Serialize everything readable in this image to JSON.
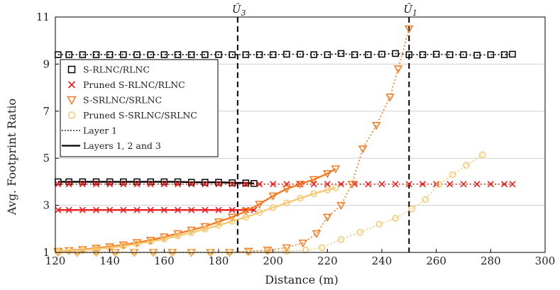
{
  "chart_data": {
    "type": "line",
    "title": "",
    "xlabel": "Distance (m)",
    "ylabel": "Avg. Footprint Ratio",
    "xlim": [
      120,
      300
    ],
    "ylim": [
      1,
      11
    ],
    "xticks": [
      120,
      140,
      160,
      180,
      200,
      220,
      240,
      260,
      280,
      300
    ],
    "yticks": [
      1,
      3,
      5,
      7,
      9,
      11
    ],
    "grid": "horizontal",
    "legend_position": "left",
    "colors": {
      "black": "#000000",
      "red": "#ee1c1c",
      "orange": "#f47a20",
      "yellow": "#f6c873",
      "vline": "#000000"
    },
    "vlines": [
      {
        "x": 187,
        "label": "Û3",
        "label_main": "Û",
        "label_sub": "3"
      },
      {
        "x": 250,
        "label": "Û1",
        "label_main": "Û",
        "label_sub": "1"
      }
    ],
    "legend": [
      {
        "label": "S-RLNC/RLNC",
        "marker": "square",
        "color": "#000000"
      },
      {
        "label": "Pruned S-RLNC/RLNC",
        "marker": "x",
        "color": "#ee1c1c"
      },
      {
        "label": "S-SRLNC/SRLNC",
        "marker": "triangle-down",
        "color": "#f47a20"
      },
      {
        "label": "Pruned S-SRLNC/SRLNC",
        "marker": "circle",
        "color": "#f6c873"
      },
      {
        "label": "Layer 1",
        "line": "dotted",
        "color": "#000000"
      },
      {
        "label": "Layers 1, 2 and 3",
        "line": "solid",
        "color": "#000000"
      }
    ],
    "series": [
      {
        "name": "S-RLNC/RLNC (Layer 1)",
        "color": "#000000",
        "marker": "square",
        "line": "dotted",
        "x": [
          121,
          125,
          130,
          135,
          140,
          145,
          150,
          155,
          160,
          165,
          170,
          175,
          180,
          185,
          190,
          195,
          200,
          205,
          210,
          215,
          220,
          225,
          230,
          235,
          240,
          245,
          250,
          255,
          260,
          265,
          270,
          275,
          280,
          285,
          288
        ],
        "y": [
          9.4,
          9.4,
          9.4,
          9.4,
          9.4,
          9.4,
          9.4,
          9.4,
          9.4,
          9.4,
          9.4,
          9.4,
          9.4,
          9.4,
          9.4,
          9.4,
          9.4,
          9.42,
          9.42,
          9.4,
          9.4,
          9.45,
          9.4,
          9.4,
          9.42,
          9.45,
          9.4,
          9.4,
          9.42,
          9.4,
          9.4,
          9.38,
          9.4,
          9.4,
          9.42
        ]
      },
      {
        "name": "S-RLNC/RLNC (Layers 1, 2 and 3)",
        "color": "#000000",
        "marker": "square",
        "line": "solid",
        "x": [
          121,
          125,
          130,
          135,
          140,
          145,
          150,
          155,
          160,
          165,
          170,
          175,
          180,
          185,
          190,
          193
        ],
        "y": [
          4.0,
          4.0,
          4.0,
          4.0,
          4.0,
          4.0,
          4.0,
          4.0,
          4.0,
          4.0,
          3.98,
          3.98,
          3.98,
          3.96,
          3.95,
          3.93
        ]
      },
      {
        "name": "Pruned S-RLNC/RLNC (Layer 1)",
        "color": "#ee1c1c",
        "marker": "x",
        "line": "dotted",
        "x": [
          121,
          125,
          130,
          135,
          140,
          145,
          150,
          155,
          160,
          165,
          170,
          175,
          180,
          185,
          190,
          195,
          200,
          205,
          210,
          215,
          220,
          225,
          230,
          235,
          240,
          245,
          250,
          255,
          260,
          265,
          270,
          275,
          280,
          285,
          288
        ],
        "y": [
          3.9,
          3.9,
          3.9,
          3.9,
          3.9,
          3.9,
          3.9,
          3.9,
          3.9,
          3.9,
          3.9,
          3.9,
          3.9,
          3.9,
          3.9,
          3.9,
          3.9,
          3.9,
          3.9,
          3.9,
          3.9,
          3.9,
          3.9,
          3.9,
          3.9,
          3.9,
          3.9,
          3.9,
          3.9,
          3.9,
          3.9,
          3.9,
          3.9,
          3.9,
          3.9
        ]
      },
      {
        "name": "Pruned S-RLNC/RLNC (Layers 1, 2 and 3)",
        "color": "#ee1c1c",
        "marker": "x",
        "line": "solid",
        "x": [
          121,
          125,
          130,
          135,
          140,
          145,
          150,
          155,
          160,
          165,
          170,
          175,
          180,
          185,
          190,
          193
        ],
        "y": [
          2.8,
          2.8,
          2.8,
          2.8,
          2.8,
          2.8,
          2.8,
          2.8,
          2.8,
          2.8,
          2.8,
          2.8,
          2.8,
          2.8,
          2.8,
          2.8
        ]
      },
      {
        "name": "S-SRLNC/SRLNC (Layer 1)",
        "color": "#f47a20",
        "marker": "triangle-down",
        "line": "dotted",
        "x": [
          121,
          128,
          135,
          142,
          149,
          156,
          163,
          170,
          177,
          184,
          191,
          198,
          205,
          211,
          216,
          220,
          225,
          229,
          233,
          238,
          243,
          246,
          250
        ],
        "y": [
          1.0,
          1.0,
          1.0,
          1.0,
          1.0,
          1.0,
          1.0,
          1.0,
          1.0,
          1.0,
          1.05,
          1.1,
          1.2,
          1.4,
          1.8,
          2.5,
          3.0,
          3.9,
          5.4,
          6.4,
          7.6,
          8.8,
          10.5
        ]
      },
      {
        "name": "S-SRLNC/SRLNC (Layers 1, 2 and 3)",
        "color": "#f47a20",
        "marker": "triangle-down",
        "line": "solid",
        "x": [
          121,
          125,
          130,
          135,
          140,
          145,
          150,
          155,
          160,
          165,
          170,
          175,
          180,
          185,
          190,
          195,
          200,
          205,
          210,
          215,
          220,
          223
        ],
        "y": [
          1.05,
          1.08,
          1.12,
          1.18,
          1.24,
          1.32,
          1.42,
          1.52,
          1.66,
          1.8,
          1.95,
          2.1,
          2.3,
          2.5,
          2.75,
          3.05,
          3.4,
          3.7,
          3.9,
          4.1,
          4.35,
          4.55
        ]
      },
      {
        "name": "Pruned S-SRLNC/SRLNC (Layer 1)",
        "color": "#f6c873",
        "marker": "circle",
        "line": "dotted",
        "x": [
          121,
          128,
          135,
          142,
          149,
          156,
          163,
          170,
          177,
          184,
          191,
          198,
          205,
          212,
          218,
          225,
          232,
          239,
          245,
          251,
          256,
          261,
          266,
          271,
          277
        ],
        "y": [
          1.0,
          1.0,
          1.0,
          1.0,
          1.0,
          1.0,
          1.0,
          1.0,
          1.0,
          1.0,
          1.0,
          1.05,
          1.05,
          1.1,
          1.2,
          1.55,
          1.85,
          2.2,
          2.45,
          2.85,
          3.25,
          3.9,
          4.3,
          4.7,
          5.15
        ]
      },
      {
        "name": "Pruned S-SRLNC/SRLNC (Layers 1, 2 and 3)",
        "color": "#f6c873",
        "marker": "circle",
        "line": "solid",
        "x": [
          121,
          125,
          130,
          135,
          140,
          145,
          150,
          155,
          160,
          165,
          170,
          175,
          180,
          185,
          190,
          195,
          200,
          205,
          210,
          215,
          220,
          223
        ],
        "y": [
          1.05,
          1.07,
          1.1,
          1.15,
          1.2,
          1.27,
          1.36,
          1.46,
          1.57,
          1.7,
          1.84,
          1.99,
          2.15,
          2.33,
          2.5,
          2.7,
          2.9,
          3.1,
          3.3,
          3.5,
          3.65,
          3.75
        ]
      }
    ]
  }
}
